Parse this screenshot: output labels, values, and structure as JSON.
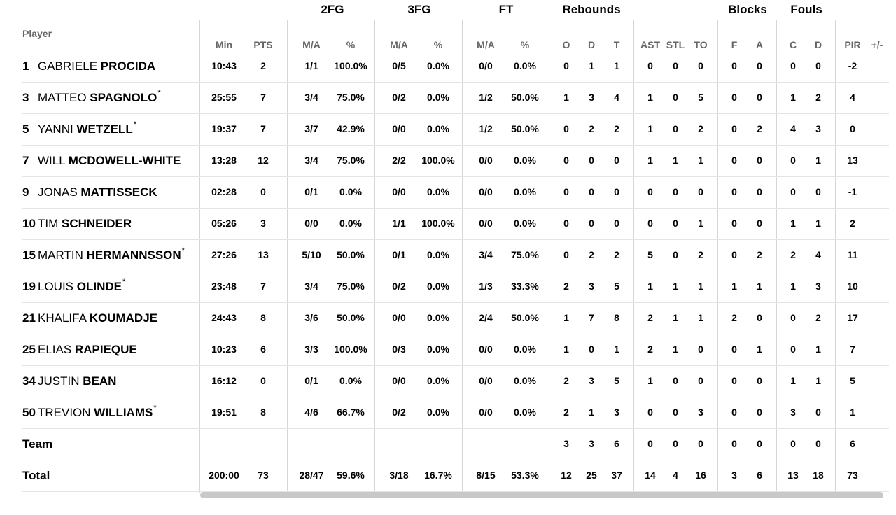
{
  "groups": {
    "fg2": "2FG",
    "fg3": "3FG",
    "ft": "FT",
    "reb": "Rebounds",
    "blk": "Blocks",
    "fouls": "Fouls"
  },
  "headers": {
    "player": "Player",
    "min": "Min",
    "pts": "PTS",
    "fg2_ma": "M/A",
    "fg2_pct": "%",
    "fg3_ma": "M/A",
    "fg3_pct": "%",
    "ft_ma": "M/A",
    "ft_pct": "%",
    "reb_o": "O",
    "reb_d": "D",
    "reb_t": "T",
    "ast": "AST",
    "stl": "STL",
    "to": "TO",
    "blk_f": "F",
    "blk_a": "A",
    "foul_c": "C",
    "foul_d": "D",
    "pir": "PIR",
    "pm": "+/-"
  },
  "players": [
    {
      "num": "1",
      "first": "GABRIELE",
      "last": "PROCIDA",
      "starter": false,
      "min": "10:43",
      "pts": "2",
      "fg2_ma": "1/1",
      "fg2_pct": "100.0%",
      "fg3_ma": "0/5",
      "fg3_pct": "0.0%",
      "ft_ma": "0/0",
      "ft_pct": "0.0%",
      "reb_o": "0",
      "reb_d": "1",
      "reb_t": "1",
      "ast": "0",
      "stl": "0",
      "to": "0",
      "blk_f": "0",
      "blk_a": "0",
      "foul_c": "0",
      "foul_d": "0",
      "pir": "-2"
    },
    {
      "num": "3",
      "first": "MATTEO",
      "last": "SPAGNOLO",
      "starter": true,
      "min": "25:55",
      "pts": "7",
      "fg2_ma": "3/4",
      "fg2_pct": "75.0%",
      "fg3_ma": "0/2",
      "fg3_pct": "0.0%",
      "ft_ma": "1/2",
      "ft_pct": "50.0%",
      "reb_o": "1",
      "reb_d": "3",
      "reb_t": "4",
      "ast": "1",
      "stl": "0",
      "to": "5",
      "blk_f": "0",
      "blk_a": "0",
      "foul_c": "1",
      "foul_d": "2",
      "pir": "4"
    },
    {
      "num": "5",
      "first": "YANNI",
      "last": "WETZELL",
      "starter": true,
      "min": "19:37",
      "pts": "7",
      "fg2_ma": "3/7",
      "fg2_pct": "42.9%",
      "fg3_ma": "0/0",
      "fg3_pct": "0.0%",
      "ft_ma": "1/2",
      "ft_pct": "50.0%",
      "reb_o": "0",
      "reb_d": "2",
      "reb_t": "2",
      "ast": "1",
      "stl": "0",
      "to": "2",
      "blk_f": "0",
      "blk_a": "2",
      "foul_c": "4",
      "foul_d": "3",
      "pir": "0"
    },
    {
      "num": "7",
      "first": "WILL",
      "last": "MCDOWELL-WHITE",
      "starter": false,
      "min": "13:28",
      "pts": "12",
      "fg2_ma": "3/4",
      "fg2_pct": "75.0%",
      "fg3_ma": "2/2",
      "fg3_pct": "100.0%",
      "ft_ma": "0/0",
      "ft_pct": "0.0%",
      "reb_o": "0",
      "reb_d": "0",
      "reb_t": "0",
      "ast": "1",
      "stl": "1",
      "to": "1",
      "blk_f": "0",
      "blk_a": "0",
      "foul_c": "0",
      "foul_d": "1",
      "pir": "13"
    },
    {
      "num": "9",
      "first": "JONAS",
      "last": "MATTISSECK",
      "starter": false,
      "min": "02:28",
      "pts": "0",
      "fg2_ma": "0/1",
      "fg2_pct": "0.0%",
      "fg3_ma": "0/0",
      "fg3_pct": "0.0%",
      "ft_ma": "0/0",
      "ft_pct": "0.0%",
      "reb_o": "0",
      "reb_d": "0",
      "reb_t": "0",
      "ast": "0",
      "stl": "0",
      "to": "0",
      "blk_f": "0",
      "blk_a": "0",
      "foul_c": "0",
      "foul_d": "0",
      "pir": "-1"
    },
    {
      "num": "10",
      "first": "TIM",
      "last": "SCHNEIDER",
      "starter": false,
      "min": "05:26",
      "pts": "3",
      "fg2_ma": "0/0",
      "fg2_pct": "0.0%",
      "fg3_ma": "1/1",
      "fg3_pct": "100.0%",
      "ft_ma": "0/0",
      "ft_pct": "0.0%",
      "reb_o": "0",
      "reb_d": "0",
      "reb_t": "0",
      "ast": "0",
      "stl": "0",
      "to": "1",
      "blk_f": "0",
      "blk_a": "0",
      "foul_c": "1",
      "foul_d": "1",
      "pir": "2"
    },
    {
      "num": "15",
      "first": "MARTIN",
      "last": "HERMANNSSON",
      "starter": true,
      "min": "27:26",
      "pts": "13",
      "fg2_ma": "5/10",
      "fg2_pct": "50.0%",
      "fg3_ma": "0/1",
      "fg3_pct": "0.0%",
      "ft_ma": "3/4",
      "ft_pct": "75.0%",
      "reb_o": "0",
      "reb_d": "2",
      "reb_t": "2",
      "ast": "5",
      "stl": "0",
      "to": "2",
      "blk_f": "0",
      "blk_a": "2",
      "foul_c": "2",
      "foul_d": "4",
      "pir": "11"
    },
    {
      "num": "19",
      "first": "LOUIS",
      "last": "OLINDE",
      "starter": true,
      "min": "23:48",
      "pts": "7",
      "fg2_ma": "3/4",
      "fg2_pct": "75.0%",
      "fg3_ma": "0/2",
      "fg3_pct": "0.0%",
      "ft_ma": "1/3",
      "ft_pct": "33.3%",
      "reb_o": "2",
      "reb_d": "3",
      "reb_t": "5",
      "ast": "1",
      "stl": "1",
      "to": "1",
      "blk_f": "1",
      "blk_a": "1",
      "foul_c": "1",
      "foul_d": "3",
      "pir": "10"
    },
    {
      "num": "21",
      "first": "KHALIFA",
      "last": "KOUMADJE",
      "starter": false,
      "min": "24:43",
      "pts": "8",
      "fg2_ma": "3/6",
      "fg2_pct": "50.0%",
      "fg3_ma": "0/0",
      "fg3_pct": "0.0%",
      "ft_ma": "2/4",
      "ft_pct": "50.0%",
      "reb_o": "1",
      "reb_d": "7",
      "reb_t": "8",
      "ast": "2",
      "stl": "1",
      "to": "1",
      "blk_f": "2",
      "blk_a": "0",
      "foul_c": "0",
      "foul_d": "2",
      "pir": "17"
    },
    {
      "num": "25",
      "first": "ELIAS",
      "last": "RAPIEQUE",
      "starter": false,
      "min": "10:23",
      "pts": "6",
      "fg2_ma": "3/3",
      "fg2_pct": "100.0%",
      "fg3_ma": "0/3",
      "fg3_pct": "0.0%",
      "ft_ma": "0/0",
      "ft_pct": "0.0%",
      "reb_o": "1",
      "reb_d": "0",
      "reb_t": "1",
      "ast": "2",
      "stl": "1",
      "to": "0",
      "blk_f": "0",
      "blk_a": "1",
      "foul_c": "0",
      "foul_d": "1",
      "pir": "7"
    },
    {
      "num": "34",
      "first": "JUSTIN",
      "last": "BEAN",
      "starter": false,
      "min": "16:12",
      "pts": "0",
      "fg2_ma": "0/1",
      "fg2_pct": "0.0%",
      "fg3_ma": "0/0",
      "fg3_pct": "0.0%",
      "ft_ma": "0/0",
      "ft_pct": "0.0%",
      "reb_o": "2",
      "reb_d": "3",
      "reb_t": "5",
      "ast": "1",
      "stl": "0",
      "to": "0",
      "blk_f": "0",
      "blk_a": "0",
      "foul_c": "1",
      "foul_d": "1",
      "pir": "5"
    },
    {
      "num": "50",
      "first": "TREVION",
      "last": "WILLIAMS",
      "starter": true,
      "min": "19:51",
      "pts": "8",
      "fg2_ma": "4/6",
      "fg2_pct": "66.7%",
      "fg3_ma": "0/2",
      "fg3_pct": "0.0%",
      "ft_ma": "0/0",
      "ft_pct": "0.0%",
      "reb_o": "2",
      "reb_d": "1",
      "reb_t": "3",
      "ast": "0",
      "stl": "0",
      "to": "3",
      "blk_f": "0",
      "blk_a": "0",
      "foul_c": "3",
      "foul_d": "0",
      "pir": "1"
    }
  ],
  "team": {
    "label": "Team",
    "min": "",
    "pts": "",
    "fg2_ma": "",
    "fg2_pct": "",
    "fg3_ma": "",
    "fg3_pct": "",
    "ft_ma": "",
    "ft_pct": "",
    "reb_o": "3",
    "reb_d": "3",
    "reb_t": "6",
    "ast": "0",
    "stl": "0",
    "to": "0",
    "blk_f": "0",
    "blk_a": "0",
    "foul_c": "0",
    "foul_d": "0",
    "pir": "6"
  },
  "total": {
    "label": "Total",
    "min": "200:00",
    "pts": "73",
    "fg2_ma": "28/47",
    "fg2_pct": "59.6%",
    "fg3_ma": "3/18",
    "fg3_pct": "16.7%",
    "ft_ma": "8/15",
    "ft_pct": "53.3%",
    "reb_o": "12",
    "reb_d": "25",
    "reb_t": "37",
    "ast": "14",
    "stl": "4",
    "to": "16",
    "blk_f": "3",
    "blk_a": "6",
    "foul_c": "13",
    "foul_d": "18",
    "pir": "73"
  },
  "starter_mark": "*"
}
